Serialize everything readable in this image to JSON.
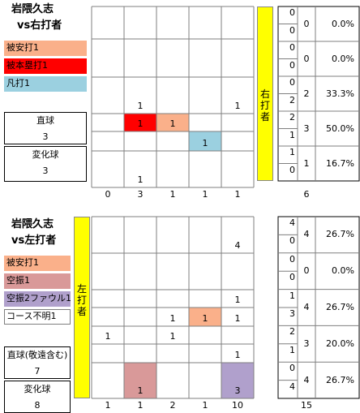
{
  "colors": {
    "hit": "#fab08a",
    "homerun": "#ff0000",
    "flyout": "#9bd0e0",
    "swinging_strike": "#d99999",
    "swinging_foul": "#b0a0cc",
    "batter_side": "#ffff00"
  },
  "chart_data": [
    {
      "type": "heatmap",
      "title": "岩隈久志",
      "subtitle": "vs右打者",
      "legend": [
        {
          "label": "被安打1",
          "color": "#fab08a"
        },
        {
          "label": "被本塁打1",
          "color": "#ff0000"
        },
        {
          "label": "凡打1",
          "color": "#9bd0e0"
        }
      ],
      "pitch_types": [
        {
          "name": "直球",
          "count": "3"
        },
        {
          "name": "変化球",
          "count": "3"
        }
      ],
      "batter_side_label": "右打者",
      "grid": [
        [
          "",
          "",
          "",
          "",
          ""
        ],
        [
          "",
          "",
          "",
          "",
          ""
        ],
        [
          "",
          "1",
          "",
          "",
          "1"
        ],
        [
          "",
          "1",
          "1",
          "",
          ""
        ],
        [
          "",
          "",
          "",
          "1",
          ""
        ],
        [
          "",
          "1",
          "",
          "",
          ""
        ]
      ],
      "cell_colors": [
        [
          "",
          "",
          "",
          "",
          ""
        ],
        [
          "",
          "",
          "",
          "",
          ""
        ],
        [
          "",
          "",
          "",
          "",
          ""
        ],
        [
          "",
          "#ff0000",
          "#fab08a",
          "",
          ""
        ],
        [
          "",
          "",
          "",
          "#9bd0e0",
          ""
        ],
        [
          "",
          "",
          "",
          "",
          ""
        ]
      ],
      "column_totals": [
        "0",
        "3",
        "1",
        "1",
        "1"
      ],
      "row_pairs": [
        [
          "0",
          "0"
        ],
        [
          "0",
          "0"
        ],
        [
          "0",
          "2"
        ],
        [
          "2",
          "1"
        ],
        [
          "1",
          "0"
        ]
      ],
      "row_totals": [
        "0",
        "0",
        "2",
        "3",
        "1"
      ],
      "row_percents": [
        "0.0%",
        "0.0%",
        "33.3%",
        "50.0%",
        "16.7%"
      ],
      "grand_total": "6"
    },
    {
      "type": "heatmap",
      "title": "岩隈久志",
      "subtitle": "vs左打者",
      "legend": [
        {
          "label": "被安打1",
          "color": "#fab08a"
        },
        {
          "label": "空振1",
          "color": "#d99999"
        },
        {
          "label": "空振2ファウル1",
          "color": "#b0a0cc"
        },
        {
          "label": "コース不明1",
          "color": ""
        }
      ],
      "pitch_types": [
        {
          "name": "直球(敬遠含む)",
          "count": "7"
        },
        {
          "name": "変化球",
          "count": "8"
        }
      ],
      "batter_side_label": "左打者",
      "grid": [
        [
          "",
          "",
          "",
          "",
          "4"
        ],
        [
          "",
          "",
          "",
          "",
          ""
        ],
        [
          "",
          "",
          "",
          "",
          "1"
        ],
        [
          "",
          "",
          "1",
          "1",
          "1"
        ],
        [
          "1",
          "",
          "1",
          "",
          ""
        ],
        [
          "",
          "",
          "",
          "",
          "1"
        ],
        [
          "",
          "1",
          "",
          "",
          "3"
        ]
      ],
      "cell_colors": [
        [
          "",
          "",
          "",
          "",
          ""
        ],
        [
          "",
          "",
          "",
          "",
          ""
        ],
        [
          "",
          "",
          "",
          "",
          ""
        ],
        [
          "",
          "",
          "",
          "#fab08a",
          ""
        ],
        [
          "",
          "",
          "",
          "",
          ""
        ],
        [
          "",
          "",
          "",
          "",
          ""
        ],
        [
          "",
          "#d99999",
          "",
          "",
          "#b0a0cc"
        ]
      ],
      "column_totals": [
        "1",
        "1",
        "2",
        "1",
        "10"
      ],
      "row_pairs": [
        [
          "4",
          "0"
        ],
        [
          "0",
          "0"
        ],
        [
          "1",
          "3"
        ],
        [
          "2",
          "1"
        ],
        [
          "0",
          "4"
        ]
      ],
      "row_totals": [
        "4",
        "0",
        "4",
        "3",
        "4"
      ],
      "row_percents": [
        "26.7%",
        "0.0%",
        "26.7%",
        "20.0%",
        "26.7%"
      ],
      "grand_total": "15"
    }
  ]
}
